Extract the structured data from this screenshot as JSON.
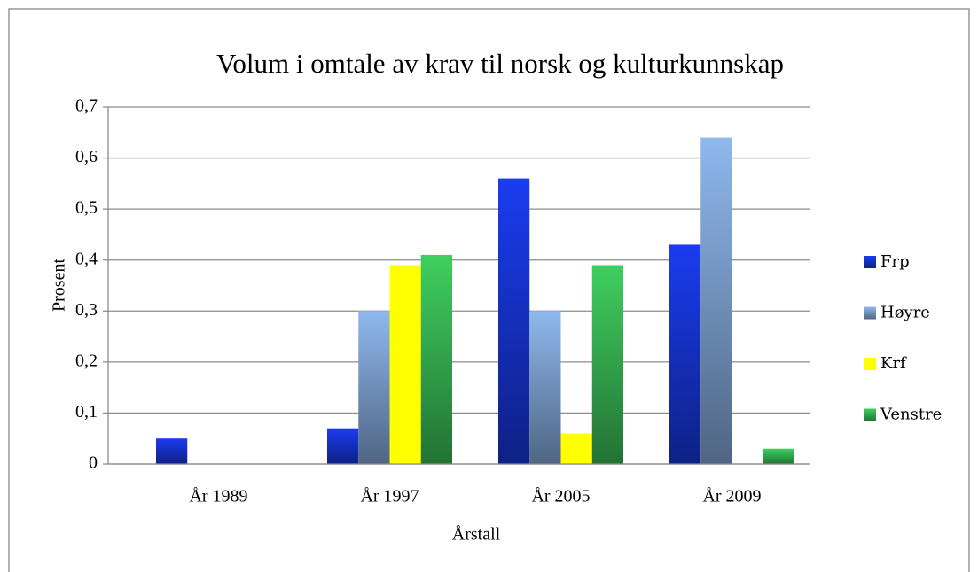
{
  "chart_data": {
    "type": "bar",
    "title": "Volum i omtale av krav til norsk og kulturkunnskap",
    "x_label": "Årstall",
    "y_label": "Prosent",
    "categories": [
      "År 1989",
      "År 1997",
      "År 2005",
      "År 2009"
    ],
    "series": [
      {
        "name": "Frp",
        "color": "#1a3cf0",
        "values": [
          0.05,
          0.07,
          0.56,
          0.43
        ]
      },
      {
        "name": "Høyre",
        "color": "#8fb8ee",
        "values": [
          0,
          0.3,
          0.3,
          0.64
        ]
      },
      {
        "name": "Krf",
        "color": "#ffff00",
        "values": [
          0,
          0.39,
          0.06,
          0
        ]
      },
      {
        "name": "Venstre",
        "color": "#3fcf5f",
        "values": [
          0,
          0.41,
          0.39,
          0.03
        ]
      }
    ],
    "ylim": [
      0,
      0.7
    ],
    "yticks": [
      0,
      {
        "value": 0.1,
        "label": "0,1"
      },
      {
        "value": 0.2,
        "label": "0,2"
      },
      {
        "value": 0.3,
        "label": "0,3"
      },
      {
        "value": 0.4,
        "label": "0,4"
      },
      {
        "value": 0.5,
        "label": "0,5"
      },
      {
        "value": 0.6,
        "label": "0,6"
      },
      {
        "value": 0.7,
        "label": "0,7"
      }
    ],
    "grid": true,
    "legend": "right"
  }
}
